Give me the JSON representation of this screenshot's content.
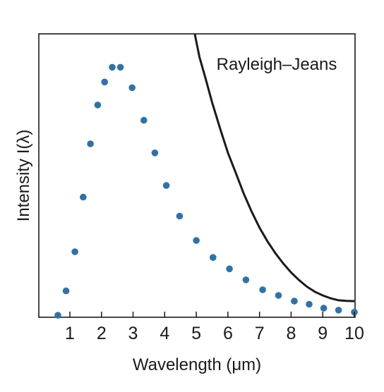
{
  "chart_data": {
    "type": "scatter",
    "xlabel": "Wavelength (μm)",
    "ylabel": "Intensity I(λ)",
    "xlim": [
      0,
      10
    ],
    "ylim": [
      0,
      1.0
    ],
    "x_ticks": [
      "1",
      "2",
      "3",
      "4",
      "5",
      "6",
      "7",
      "8",
      "9",
      "10"
    ],
    "y_ticks": [],
    "grid": false,
    "legend": "none",
    "colors": {
      "points": "#2f72aa",
      "curve": "#1a1a1a",
      "axes": "#1a1a1a"
    },
    "series": [
      {
        "type": "scatter",
        "x": [
          0.62,
          0.88,
          1.16,
          1.42,
          1.65,
          1.88,
          2.1,
          2.34,
          2.6,
          2.97,
          3.34,
          3.69,
          4.05,
          4.47,
          5.0,
          5.53,
          6.05,
          6.57,
          7.1,
          7.6,
          8.1,
          8.57,
          9.03,
          9.5,
          10.0
        ],
        "y": [
          0.007,
          0.093,
          0.231,
          0.424,
          0.612,
          0.749,
          0.83,
          0.882,
          0.882,
          0.81,
          0.695,
          0.58,
          0.465,
          0.357,
          0.271,
          0.211,
          0.171,
          0.132,
          0.097,
          0.077,
          0.057,
          0.046,
          0.032,
          0.025,
          0.018
        ]
      },
      {
        "name": "Rayleigh–Jeans",
        "type": "line",
        "x": [
          4.95,
          5.1,
          5.3,
          5.5,
          5.75,
          6.0,
          6.25,
          6.5,
          6.75,
          7.0,
          7.25,
          7.5,
          7.75,
          8.0,
          8.25,
          8.5,
          8.75,
          9.0,
          9.25,
          9.5,
          9.75,
          10.0
        ],
        "y": [
          1.0,
          0.918,
          0.84,
          0.758,
          0.667,
          0.58,
          0.509,
          0.436,
          0.373,
          0.316,
          0.268,
          0.226,
          0.19,
          0.158,
          0.131,
          0.108,
          0.09,
          0.077,
          0.067,
          0.06,
          0.058,
          0.057
        ]
      }
    ]
  }
}
